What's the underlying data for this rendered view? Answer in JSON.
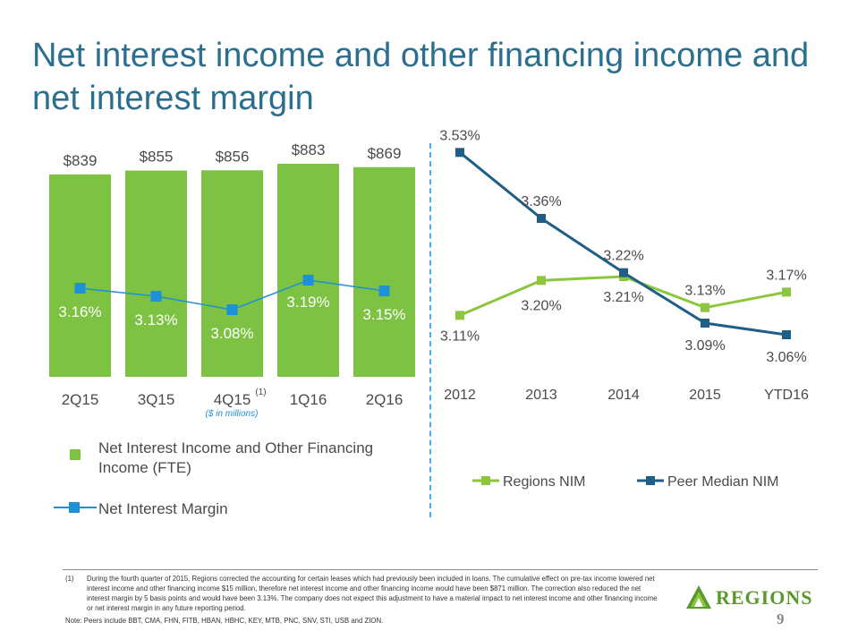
{
  "title": "Net interest income and other financing income and net interest margin",
  "chart_data": [
    {
      "type": "bar+line",
      "categories": [
        "2Q15",
        "3Q15",
        "4Q15",
        "1Q16",
        "2Q16"
      ],
      "category_superscripts": [
        "",
        "",
        "(1)",
        "",
        ""
      ],
      "bar_series": {
        "name": "Net Interest Income and Other Financing Income (FTE)",
        "values": [
          839,
          855,
          856,
          883,
          869
        ],
        "labels": [
          "$839",
          "$855",
          "$856",
          "$883",
          "$869"
        ]
      },
      "line_series": {
        "name": "Net Interest Margin",
        "values": [
          3.16,
          3.13,
          3.08,
          3.19,
          3.15
        ],
        "labels": [
          "3.16%",
          "3.13%",
          "3.08%",
          "3.19%",
          "3.15%"
        ]
      },
      "units_note": "($ in millions)",
      "bar_ylim": [
        0,
        883
      ],
      "line_ylim": [
        2.9,
        3.4
      ]
    },
    {
      "type": "line",
      "categories": [
        "2012",
        "2013",
        "2014",
        "2015",
        "YTD16"
      ],
      "series": [
        {
          "name": "Regions NIM",
          "values": [
            3.11,
            3.2,
            3.21,
            3.13,
            3.17
          ],
          "labels": [
            "3.11%",
            "3.20%",
            "3.21%",
            "3.13%",
            "3.17%"
          ]
        },
        {
          "name": "Peer Median NIM",
          "values": [
            3.53,
            3.36,
            3.22,
            3.09,
            3.06
          ],
          "labels": [
            "3.53%",
            "3.36%",
            "3.22%",
            "3.09%",
            "3.06%"
          ]
        }
      ],
      "ylim": [
        3.0,
        3.6
      ],
      "legend": "bottom"
    }
  ],
  "legend_left": {
    "bar_label": "Net Interest Income and Other Financing Income (FTE)",
    "line_label": "Net Interest Margin"
  },
  "footnote": {
    "number": "(1)",
    "text": "During the fourth quarter of 2015, Regions corrected the accounting for certain leases which had previously been included in loans. The cumulative effect on pre-tax income lowered net interest income and other financing income $15 million, therefore net interest income and other financing income would have been $871 million.  The correction also reduced the net interest margin by 5 basis points and would have been 3.13%.  The company does not expect this adjustment to have a material impact to net interest income and other financing income or net interest margin in any future reporting period."
  },
  "note": "Note:  Peers include BBT, CMA, FHN, FITB, HBAN, HBHC, KEY, MTB, PNC, SNV, STI, USB and ZION.",
  "logo_text": "REGIONS",
  "page_number": "9",
  "colors": {
    "title": "#2b6f8f",
    "bar": "#7dc242",
    "margin_line": "#1e90d6",
    "regions_line": "#8cc63f",
    "peer_line": "#1f5f85",
    "divider": "#49aee4"
  }
}
